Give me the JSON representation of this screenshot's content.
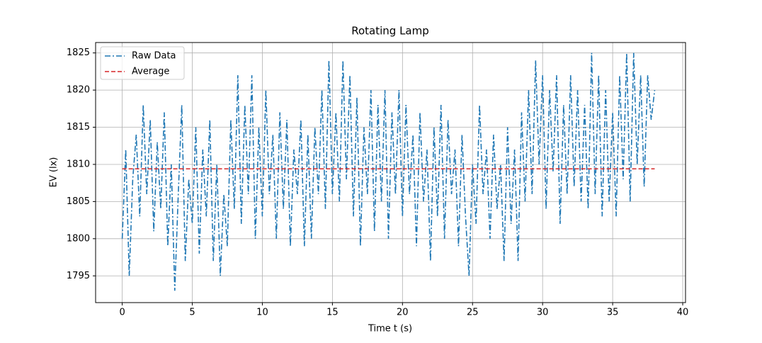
{
  "chart_data": {
    "type": "line",
    "title": "Rotating Lamp",
    "x_label": "Time t (s)",
    "y_label": "EV (lx)",
    "xlim": [
      -1.9,
      40.2
    ],
    "xticks": [
      0,
      5,
      10,
      15,
      20,
      25,
      30,
      35,
      40
    ],
    "ylim": [
      1791.4,
      1826.4
    ],
    "yticks": [
      1795,
      1800,
      1805,
      1810,
      1815,
      1820,
      1825
    ],
    "grid": true,
    "legend": "upper left",
    "series": [
      {
        "name": "Raw Data",
        "color": "#1f77b4",
        "dash": "dashdot",
        "x": [
          0,
          0.25,
          0.5,
          0.75,
          1,
          1.25,
          1.5,
          1.75,
          2,
          2.25,
          2.5,
          2.75,
          3,
          3.25,
          3.5,
          3.75,
          4,
          4.25,
          4.5,
          4.75,
          5,
          5.25,
          5.5,
          5.75,
          6,
          6.25,
          6.5,
          6.75,
          7,
          7.25,
          7.5,
          7.75,
          8,
          8.25,
          8.5,
          8.75,
          9,
          9.25,
          9.5,
          9.75,
          10,
          10.25,
          10.5,
          10.75,
          11,
          11.25,
          11.5,
          11.75,
          12,
          12.25,
          12.5,
          12.75,
          13,
          13.25,
          13.5,
          13.75,
          14,
          14.25,
          14.5,
          14.75,
          15,
          15.25,
          15.5,
          15.75,
          16,
          16.25,
          16.5,
          16.75,
          17,
          17.25,
          17.5,
          17.75,
          18,
          18.25,
          18.5,
          18.75,
          19,
          19.25,
          19.5,
          19.75,
          20,
          20.25,
          20.5,
          20.75,
          21,
          21.25,
          21.5,
          21.75,
          22,
          22.25,
          22.5,
          22.75,
          23,
          23.25,
          23.5,
          23.75,
          24,
          24.25,
          24.5,
          24.75,
          25,
          25.25,
          25.5,
          25.75,
          26,
          26.25,
          26.5,
          26.75,
          27,
          27.25,
          27.5,
          27.75,
          28,
          28.25,
          28.5,
          28.75,
          29,
          29.25,
          29.5,
          29.75,
          30,
          30.25,
          30.5,
          30.75,
          31,
          31.25,
          31.5,
          31.75,
          32,
          32.25,
          32.5,
          32.75,
          33,
          33.25,
          33.5,
          33.75,
          34,
          34.25,
          34.5,
          34.75,
          35,
          35.25,
          35.5,
          35.75,
          36,
          36.25,
          36.5,
          36.75,
          37,
          37.25,
          37.5,
          37.75,
          38
        ],
        "values": [
          1800,
          1812,
          1795,
          1808,
          1814,
          1803,
          1818,
          1806,
          1816,
          1801,
          1813,
          1804,
          1817,
          1799,
          1810,
          1793,
          1806,
          1818,
          1797,
          1808,
          1802,
          1815,
          1798,
          1812,
          1803,
          1816,
          1797,
          1810,
          1795,
          1806,
          1799,
          1816,
          1804,
          1822,
          1802,
          1818,
          1806,
          1822,
          1800,
          1815,
          1803,
          1820,
          1806,
          1814,
          1800,
          1817,
          1804,
          1816,
          1799,
          1812,
          1806,
          1816,
          1799,
          1814,
          1800,
          1815,
          1806,
          1820,
          1804,
          1824,
          1806,
          1817,
          1805,
          1824,
          1808,
          1822,
          1803,
          1819,
          1799,
          1815,
          1806,
          1820,
          1801,
          1818,
          1805,
          1820,
          1800,
          1817,
          1806,
          1820,
          1803,
          1818,
          1806,
          1814,
          1799,
          1817,
          1805,
          1812,
          1797,
          1815,
          1803,
          1818,
          1800,
          1816,
          1806,
          1812,
          1799,
          1814,
          1803,
          1795,
          1810,
          1802,
          1818,
          1806,
          1812,
          1800,
          1814,
          1804,
          1810,
          1797,
          1815,
          1802,
          1812,
          1797,
          1817,
          1805,
          1820,
          1806,
          1824,
          1810,
          1822,
          1804,
          1820,
          1809,
          1822,
          1802,
          1818,
          1806,
          1822,
          1807,
          1820,
          1805,
          1818,
          1804,
          1825,
          1806,
          1822,
          1803,
          1820,
          1805,
          1817,
          1803,
          1822,
          1808,
          1825,
          1805,
          1825,
          1810,
          1822,
          1807,
          1822,
          1816,
          1820
        ]
      },
      {
        "name": "Average",
        "color": "#d62728",
        "dash": "dashed",
        "x": [
          0,
          38
        ],
        "values": [
          1809.4,
          1809.4
        ]
      }
    ]
  }
}
